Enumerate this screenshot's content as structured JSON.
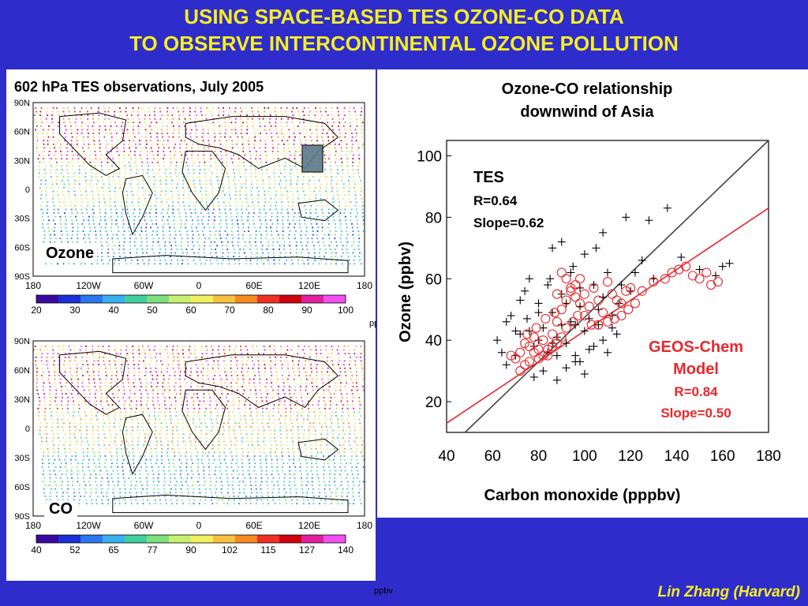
{
  "header": {
    "title_line1": "USING SPACE-BASED TES OZONE-CO DATA",
    "title_line2": "TO OBSERVE INTERCONTINENTAL OZONE POLLUTION"
  },
  "left": {
    "caption": "602 hPa TES observations, July 2005",
    "maps": [
      {
        "label": "Ozone",
        "lat_ticks": [
          "90N",
          "60N",
          "30N",
          "0",
          "30S",
          "60S",
          "90S"
        ],
        "lon_ticks": [
          "180",
          "120W",
          "60W",
          "0",
          "60E",
          "120E",
          "180"
        ],
        "colorbar_ticks": [
          "20",
          "30",
          "40",
          "50",
          "60",
          "70",
          "80",
          "90",
          "100"
        ],
        "unit": "ppbv"
      },
      {
        "label": "CO",
        "lat_ticks": [
          "90N",
          "60N",
          "30N",
          "0",
          "30S",
          "60S",
          "90S"
        ],
        "lon_ticks": [
          "180",
          "120W",
          "60W",
          "0",
          "60E",
          "120E",
          "180"
        ],
        "colorbar_ticks": [
          "40",
          "52",
          "65",
          "77",
          "90",
          "102",
          "115",
          "127",
          "140"
        ],
        "unit": "ppbv"
      }
    ],
    "colorbar_colors": [
      "#3a0aa0",
      "#1a30d8",
      "#2a78f0",
      "#3ab0f0",
      "#40d0a0",
      "#7ce07c",
      "#c8f070",
      "#f0f060",
      "#f8c040",
      "#f88820",
      "#f03020",
      "#d00010",
      "#e020a0",
      "#f050f0"
    ]
  },
  "chart_data": {
    "type": "scatter",
    "title": "Ozone-CO relationship downwind of Asia",
    "xlabel": "Carbon monoxide (pppbv)",
    "ylabel": "Ozone (ppbv)",
    "xlim": [
      40,
      180
    ],
    "ylim": [
      10,
      105
    ],
    "x_ticks": [
      40,
      60,
      80,
      100,
      120,
      140,
      160,
      180
    ],
    "y_ticks": [
      20,
      40,
      60,
      80,
      100
    ],
    "grid": false,
    "annotations": {
      "tes_label": "TES",
      "tes_r": "R=0.64",
      "tes_slope": "Slope=0.62",
      "model_label1": "GEOS-Chem",
      "model_label2": "Model",
      "model_r": "R=0.84",
      "model_slope": "Slope=0.50"
    },
    "colors": {
      "tes": "#000000",
      "model": "#e8282c",
      "one_to_one": "#444444"
    },
    "series": [
      {
        "name": "TES",
        "marker": "plus",
        "points": [
          [
            72,
            42
          ],
          [
            75,
            47
          ],
          [
            78,
            38
          ],
          [
            80,
            52
          ],
          [
            82,
            44
          ],
          [
            84,
            36
          ],
          [
            86,
            49
          ],
          [
            88,
            41
          ],
          [
            90,
            55
          ],
          [
            92,
            39
          ],
          [
            94,
            46
          ],
          [
            96,
            33
          ],
          [
            98,
            51
          ],
          [
            100,
            43
          ],
          [
            102,
            37
          ],
          [
            104,
            58
          ],
          [
            106,
            45
          ],
          [
            108,
            40
          ],
          [
            110,
            62
          ],
          [
            112,
            48
          ],
          [
            85,
            60
          ],
          [
            95,
            64
          ],
          [
            105,
            70
          ],
          [
            115,
            52
          ],
          [
            120,
            56
          ],
          [
            125,
            66
          ],
          [
            130,
            60
          ],
          [
            78,
            28
          ],
          [
            82,
            30
          ],
          [
            88,
            27
          ],
          [
            92,
            31
          ],
          [
            96,
            35
          ],
          [
            100,
            29
          ],
          [
            70,
            35
          ],
          [
            68,
            48
          ],
          [
            74,
            56
          ],
          [
            62,
            40
          ],
          [
            64,
            36
          ],
          [
            66,
            32
          ],
          [
            86,
            70
          ],
          [
            90,
            72
          ],
          [
            100,
            68
          ],
          [
            118,
            80
          ],
          [
            136,
            83
          ],
          [
            128,
            79
          ],
          [
            142,
            67
          ],
          [
            150,
            63
          ],
          [
            157,
            61
          ],
          [
            160,
            64
          ],
          [
            163,
            65
          ],
          [
            110,
            36
          ],
          [
            114,
            42
          ],
          [
            106,
            50
          ],
          [
            98,
            57
          ],
          [
            94,
            62
          ],
          [
            90,
            45
          ],
          [
            86,
            39
          ],
          [
            80,
            49
          ],
          [
            76,
            43
          ],
          [
            72,
            53
          ],
          [
            84,
            58
          ],
          [
            92,
            52
          ],
          [
            102,
            47
          ],
          [
            108,
            54
          ],
          [
            116,
            58
          ],
          [
            122,
            62
          ],
          [
            108,
            75
          ],
          [
            96,
            45
          ],
          [
            104,
            38
          ],
          [
            112,
            44
          ],
          [
            76,
            60
          ],
          [
            70,
            43
          ],
          [
            66,
            46
          ],
          [
            98,
            33
          ],
          [
            88,
            35
          ],
          [
            80,
            40
          ]
        ]
      },
      {
        "name": "GEOS-Chem Model",
        "marker": "circle",
        "points": [
          [
            72,
            36
          ],
          [
            74,
            39
          ],
          [
            76,
            33
          ],
          [
            78,
            41
          ],
          [
            80,
            37
          ],
          [
            82,
            40
          ],
          [
            84,
            35
          ],
          [
            86,
            42
          ],
          [
            88,
            46
          ],
          [
            90,
            50
          ],
          [
            92,
            53
          ],
          [
            94,
            56
          ],
          [
            96,
            58
          ],
          [
            98,
            60
          ],
          [
            100,
            55
          ],
          [
            102,
            51
          ],
          [
            104,
            57
          ],
          [
            106,
            53
          ],
          [
            108,
            49
          ],
          [
            110,
            59
          ],
          [
            112,
            55
          ],
          [
            114,
            53
          ],
          [
            116,
            52
          ],
          [
            118,
            56
          ],
          [
            120,
            57
          ],
          [
            125,
            56
          ],
          [
            130,
            59
          ],
          [
            135,
            60
          ],
          [
            138,
            62
          ],
          [
            141,
            63
          ],
          [
            144,
            64
          ],
          [
            147,
            61
          ],
          [
            150,
            60
          ],
          [
            153,
            62
          ],
          [
            155,
            58
          ],
          [
            158,
            59
          ],
          [
            88,
            55
          ],
          [
            90,
            62
          ],
          [
            92,
            60
          ],
          [
            94,
            57
          ],
          [
            96,
            54
          ],
          [
            98,
            52
          ],
          [
            95,
            46
          ],
          [
            92,
            44
          ],
          [
            90,
            41
          ],
          [
            88,
            39
          ],
          [
            86,
            38
          ],
          [
            84,
            37
          ],
          [
            82,
            35
          ],
          [
            80,
            34
          ],
          [
            78,
            36
          ],
          [
            76,
            38
          ],
          [
            74,
            32
          ],
          [
            72,
            30
          ],
          [
            70,
            34
          ],
          [
            68,
            35
          ],
          [
            75,
            42
          ],
          [
            79,
            44
          ],
          [
            83,
            47
          ],
          [
            87,
            49
          ],
          [
            97,
            48
          ],
          [
            100,
            48
          ],
          [
            103,
            45
          ],
          [
            106,
            45
          ],
          [
            110,
            46
          ],
          [
            113,
            47
          ],
          [
            116,
            48
          ],
          [
            119,
            50
          ],
          [
            122,
            52
          ]
        ]
      }
    ],
    "fit_lines": [
      {
        "name": "1:1",
        "from": [
          48,
          10
        ],
        "to": [
          180,
          105
        ]
      },
      {
        "name": "GEOS-Chem fit",
        "from": [
          40,
          13
        ],
        "to": [
          180,
          83
        ]
      }
    ]
  },
  "footer": {
    "credit": "Lin Zhang (Harvard)",
    "unit_bottom": "ppbv"
  }
}
